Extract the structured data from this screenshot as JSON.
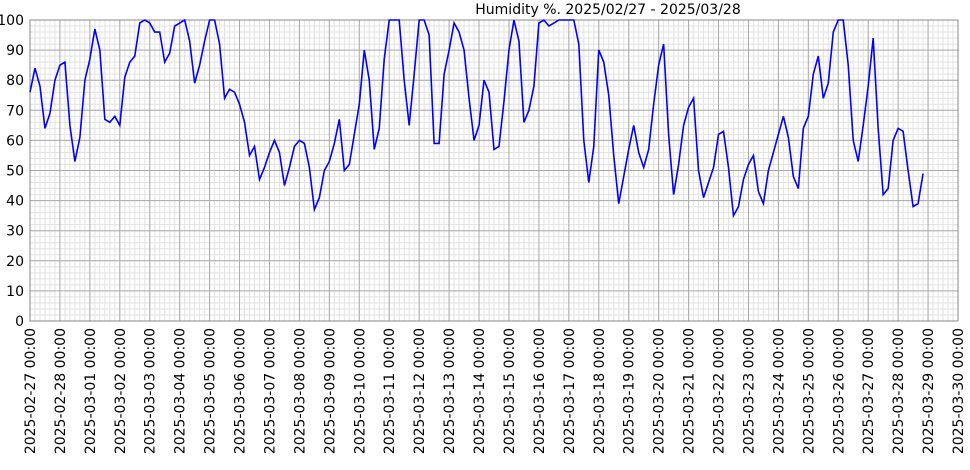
{
  "chart_data": {
    "type": "line",
    "title": "Humidity %. 2025/02/27 - 2025/03/28",
    "x": [
      "2025-02-27 00:00",
      "2025-02-27 04:00",
      "2025-02-27 08:00",
      "2025-02-27 12:00",
      "2025-02-27 16:00",
      "2025-02-27 20:00",
      "2025-02-28 00:00",
      "2025-02-28 04:00",
      "2025-02-28 08:00",
      "2025-02-28 12:00",
      "2025-02-28 16:00",
      "2025-02-28 20:00",
      "2025-03-01 00:00",
      "2025-03-01 04:00",
      "2025-03-01 08:00",
      "2025-03-01 12:00",
      "2025-03-01 16:00",
      "2025-03-01 20:00",
      "2025-03-02 00:00",
      "2025-03-02 04:00",
      "2025-03-02 08:00",
      "2025-03-02 12:00",
      "2025-03-02 16:00",
      "2025-03-02 20:00",
      "2025-03-03 00:00",
      "2025-03-03 04:00",
      "2025-03-03 08:00",
      "2025-03-03 12:00",
      "2025-03-03 16:00",
      "2025-03-03 20:00",
      "2025-03-04 00:00",
      "2025-03-04 04:00",
      "2025-03-04 08:00",
      "2025-03-04 12:00",
      "2025-03-04 16:00",
      "2025-03-04 20:00",
      "2025-03-05 00:00",
      "2025-03-05 04:00",
      "2025-03-05 08:00",
      "2025-03-05 12:00",
      "2025-03-05 16:00",
      "2025-03-05 20:00",
      "2025-03-06 00:00",
      "2025-03-06 04:00",
      "2025-03-06 08:00",
      "2025-03-06 12:00",
      "2025-03-06 16:00",
      "2025-03-06 20:00",
      "2025-03-07 00:00",
      "2025-03-07 04:00",
      "2025-03-07 08:00",
      "2025-03-07 12:00",
      "2025-03-07 16:00",
      "2025-03-07 20:00",
      "2025-03-08 00:00",
      "2025-03-08 04:00",
      "2025-03-08 08:00",
      "2025-03-08 12:00",
      "2025-03-08 16:00",
      "2025-03-08 20:00",
      "2025-03-09 00:00",
      "2025-03-09 04:00",
      "2025-03-09 08:00",
      "2025-03-09 12:00",
      "2025-03-09 16:00",
      "2025-03-09 20:00",
      "2025-03-10 00:00",
      "2025-03-10 04:00",
      "2025-03-10 08:00",
      "2025-03-10 12:00",
      "2025-03-10 16:00",
      "2025-03-10 20:00",
      "2025-03-11 00:00",
      "2025-03-11 04:00",
      "2025-03-11 08:00",
      "2025-03-11 12:00",
      "2025-03-11 16:00",
      "2025-03-11 20:00",
      "2025-03-12 00:00",
      "2025-03-12 04:00",
      "2025-03-12 08:00",
      "2025-03-12 12:00",
      "2025-03-12 16:00",
      "2025-03-12 20:00",
      "2025-03-13 00:00",
      "2025-03-13 04:00",
      "2025-03-13 08:00",
      "2025-03-13 12:00",
      "2025-03-13 16:00",
      "2025-03-13 20:00",
      "2025-03-14 00:00",
      "2025-03-14 04:00",
      "2025-03-14 08:00",
      "2025-03-14 12:00",
      "2025-03-14 16:00",
      "2025-03-14 20:00",
      "2025-03-15 00:00",
      "2025-03-15 04:00",
      "2025-03-15 08:00",
      "2025-03-15 12:00",
      "2025-03-15 16:00",
      "2025-03-15 20:00",
      "2025-03-16 00:00",
      "2025-03-16 04:00",
      "2025-03-16 08:00",
      "2025-03-16 12:00",
      "2025-03-16 16:00",
      "2025-03-16 20:00",
      "2025-03-17 00:00",
      "2025-03-17 04:00",
      "2025-03-17 08:00",
      "2025-03-17 12:00",
      "2025-03-17 16:00",
      "2025-03-17 20:00",
      "2025-03-18 00:00",
      "2025-03-18 04:00",
      "2025-03-18 08:00",
      "2025-03-18 12:00",
      "2025-03-18 16:00",
      "2025-03-18 20:00",
      "2025-03-19 00:00",
      "2025-03-19 04:00",
      "2025-03-19 08:00",
      "2025-03-19 12:00",
      "2025-03-19 16:00",
      "2025-03-19 20:00",
      "2025-03-20 00:00",
      "2025-03-20 04:00",
      "2025-03-20 08:00",
      "2025-03-20 12:00",
      "2025-03-20 16:00",
      "2025-03-20 20:00",
      "2025-03-21 00:00",
      "2025-03-21 04:00",
      "2025-03-21 08:00",
      "2025-03-21 12:00",
      "2025-03-21 16:00",
      "2025-03-21 20:00",
      "2025-03-22 00:00",
      "2025-03-22 04:00",
      "2025-03-22 08:00",
      "2025-03-22 12:00",
      "2025-03-22 16:00",
      "2025-03-22 20:00",
      "2025-03-23 00:00",
      "2025-03-23 04:00",
      "2025-03-23 08:00",
      "2025-03-23 12:00",
      "2025-03-23 16:00",
      "2025-03-23 20:00",
      "2025-03-24 00:00",
      "2025-03-24 04:00",
      "2025-03-24 08:00",
      "2025-03-24 12:00",
      "2025-03-24 16:00",
      "2025-03-24 20:00",
      "2025-03-25 00:00",
      "2025-03-25 04:00",
      "2025-03-25 08:00",
      "2025-03-25 12:00",
      "2025-03-25 16:00",
      "2025-03-25 20:00",
      "2025-03-26 00:00",
      "2025-03-26 04:00",
      "2025-03-26 08:00",
      "2025-03-26 12:00",
      "2025-03-26 16:00",
      "2025-03-26 20:00",
      "2025-03-27 00:00",
      "2025-03-27 04:00",
      "2025-03-27 08:00",
      "2025-03-27 12:00",
      "2025-03-27 16:00",
      "2025-03-27 20:00",
      "2025-03-28 00:00",
      "2025-03-28 04:00",
      "2025-03-28 08:00",
      "2025-03-28 12:00",
      "2025-03-28 16:00",
      "2025-03-28 20:00"
    ],
    "series": [
      {
        "name": "Humidity",
        "color": "#0000ff",
        "values": [
          76,
          84,
          78,
          64,
          69,
          80,
          85,
          86,
          65,
          53,
          61,
          80,
          87,
          97,
          90,
          67,
          66,
          68,
          65,
          81,
          86,
          88,
          99,
          100,
          99,
          96,
          96,
          86,
          89,
          98,
          99,
          100,
          93,
          79,
          85,
          93,
          100,
          100,
          92,
          74,
          77,
          76,
          72,
          66,
          55,
          58,
          47,
          51,
          56,
          60,
          56,
          45,
          51,
          58,
          60,
          59,
          51,
          37,
          41,
          50,
          53,
          59,
          67,
          50,
          52,
          62,
          72,
          90,
          80,
          57,
          64,
          87,
          100,
          100,
          100,
          80,
          65,
          82,
          100,
          100,
          95,
          59,
          59,
          82,
          90,
          99,
          96,
          90,
          74,
          60,
          65,
          80,
          76,
          57,
          58,
          73,
          90,
          100,
          93,
          66,
          70,
          78,
          99,
          100,
          98,
          99,
          100,
          100,
          100,
          100,
          92,
          60,
          46,
          58,
          90,
          86,
          75,
          55,
          39,
          48,
          57,
          65,
          56,
          51,
          57,
          72,
          85,
          92,
          62,
          42,
          52,
          65,
          71,
          74,
          50,
          41,
          46,
          51,
          62,
          63,
          51,
          35,
          38,
          47,
          52,
          55,
          43,
          39,
          50,
          56,
          62,
          68,
          61,
          48,
          44,
          64,
          68,
          82,
          88,
          74,
          79,
          96,
          100,
          100,
          85,
          60,
          53,
          65,
          78,
          94,
          64,
          42,
          44,
          60,
          64,
          63,
          50,
          38,
          39,
          49
        ]
      }
    ],
    "xlim": [
      "2025-02-27 00:00",
      "2025-03-30 00:00"
    ],
    "xticks": [
      "2025-02-27 00:00",
      "2025-02-28 00:00",
      "2025-03-01 00:00",
      "2025-03-02 00:00",
      "2025-03-03 00:00",
      "2025-03-04 00:00",
      "2025-03-05 00:00",
      "2025-03-06 00:00",
      "2025-03-07 00:00",
      "2025-03-08 00:00",
      "2025-03-09 00:00",
      "2025-03-10 00:00",
      "2025-03-11 00:00",
      "2025-03-12 00:00",
      "2025-03-13 00:00",
      "2025-03-14 00:00",
      "2025-03-15 00:00",
      "2025-03-16 00:00",
      "2025-03-17 00:00",
      "2025-03-18 00:00",
      "2025-03-19 00:00",
      "2025-03-20 00:00",
      "2025-03-21 00:00",
      "2025-03-22 00:00",
      "2025-03-23 00:00",
      "2025-03-24 00:00",
      "2025-03-25 00:00",
      "2025-03-26 00:00",
      "2025-03-27 00:00",
      "2025-03-28 00:00",
      "2025-03-29 00:00",
      "2025-03-30 00:00"
    ],
    "ylim": [
      0,
      100
    ],
    "yticks": [
      0,
      10,
      20,
      30,
      40,
      50,
      60,
      70,
      80,
      90,
      100
    ],
    "grid": true
  }
}
